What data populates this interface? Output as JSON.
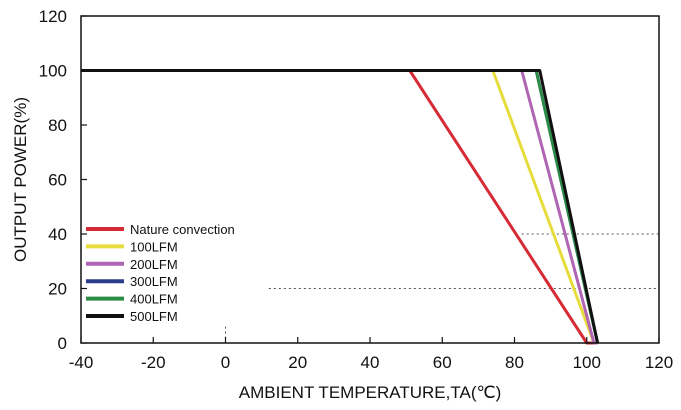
{
  "chart_data": {
    "type": "line",
    "title": "",
    "xlabel": "AMBIENT TEMPERATURE,TA(℃)",
    "ylabel": "OUTPUT POWER(%)",
    "xlim": [
      -40,
      120
    ],
    "ylim": [
      0,
      120
    ],
    "xticks": [
      -40,
      -20,
      0,
      20,
      40,
      60,
      80,
      100,
      120
    ],
    "yticks": [
      0,
      20,
      40,
      60,
      80,
      100,
      120
    ],
    "grid": "partial dotted",
    "legend_position": "lower-left",
    "series": [
      {
        "name": "Nature convection",
        "color": "#d62a35",
        "x": [
          -40,
          51,
          100,
          103
        ],
        "y": [
          100,
          100,
          0,
          0
        ]
      },
      {
        "name": "100LFM",
        "color": "#e6dc3c",
        "x": [
          -40,
          74,
          102,
          103
        ],
        "y": [
          100,
          100,
          0,
          0
        ]
      },
      {
        "name": "200LFM",
        "color": "#b064b4",
        "x": [
          -40,
          82,
          102,
          103
        ],
        "y": [
          100,
          100,
          0,
          0
        ]
      },
      {
        "name": "300LFM",
        "color": "#2a3c8c",
        "x": [
          -40,
          86,
          103
        ],
        "y": [
          100,
          100,
          0
        ]
      },
      {
        "name": "400LFM",
        "color": "#2a8c46",
        "x": [
          -40,
          86,
          103
        ],
        "y": [
          100,
          100,
          0
        ]
      },
      {
        "name": "500LFM",
        "color": "#111111",
        "x": [
          -40,
          87,
          103
        ],
        "y": [
          100,
          100,
          0
        ]
      }
    ]
  }
}
